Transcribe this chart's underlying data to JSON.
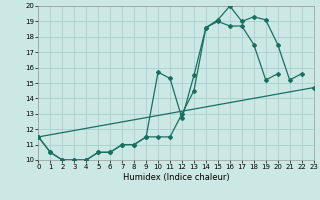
{
  "xlabel": "Humidex (Indice chaleur)",
  "xlim": [
    0,
    23
  ],
  "ylim": [
    10,
    20
  ],
  "xticks": [
    0,
    1,
    2,
    3,
    4,
    5,
    6,
    7,
    8,
    9,
    10,
    11,
    12,
    13,
    14,
    15,
    16,
    17,
    18,
    19,
    20,
    21,
    22,
    23
  ],
  "yticks": [
    10,
    11,
    12,
    13,
    14,
    15,
    16,
    17,
    18,
    19,
    20
  ],
  "bg_color": "#cce8e4",
  "grid_color": "#aacfcb",
  "line_color": "#1a7060",
  "line1_x": [
    0,
    1,
    2,
    3,
    4,
    5,
    6,
    7,
    8,
    9,
    10,
    11,
    12,
    13,
    14,
    15,
    16,
    17,
    18,
    19,
    20,
    21,
    22
  ],
  "line1_y": [
    11.5,
    10.5,
    10.0,
    10.0,
    10.0,
    10.5,
    10.5,
    11.0,
    11.0,
    11.5,
    15.7,
    15.3,
    12.7,
    15.5,
    18.6,
    19.1,
    20.0,
    19.0,
    19.3,
    19.1,
    17.5,
    15.2,
    15.6
  ],
  "line2_x": [
    0,
    1,
    2,
    3,
    4,
    5,
    6,
    7,
    8,
    9,
    10,
    11,
    12,
    13,
    14,
    15,
    16,
    17,
    18,
    19,
    20,
    21,
    22
  ],
  "line2_y": [
    11.5,
    10.5,
    10.0,
    10.0,
    10.0,
    10.5,
    10.5,
    11.0,
    11.0,
    11.5,
    11.5,
    11.5,
    13.0,
    14.5,
    18.6,
    19.0,
    18.7,
    18.7,
    17.5,
    15.2,
    15.6,
    null,
    null
  ],
  "line3_x": [
    0,
    23
  ],
  "line3_y": [
    11.5,
    14.7
  ]
}
